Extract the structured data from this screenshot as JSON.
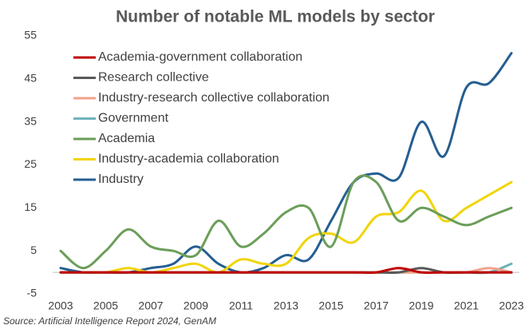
{
  "chart_data": {
    "type": "line",
    "title": "Number of notable ML models by sector",
    "source": "Source: Artificial Intelligence Report 2024, GenAM",
    "x": [
      2003,
      2004,
      2005,
      2006,
      2007,
      2008,
      2009,
      2010,
      2011,
      2012,
      2013,
      2014,
      2015,
      2016,
      2017,
      2018,
      2019,
      2020,
      2021,
      2022,
      2023
    ],
    "xlim": [
      2003,
      2023
    ],
    "xticks": [
      2003,
      2005,
      2007,
      2009,
      2011,
      2013,
      2015,
      2017,
      2019,
      2021,
      2023
    ],
    "ylim": [
      -5,
      55
    ],
    "yticks": [
      -5,
      5,
      15,
      25,
      35,
      45,
      55
    ],
    "grid": false,
    "legend": "upper left",
    "series": [
      {
        "name": "Academia-government collaboration",
        "color": "#c00000",
        "values": [
          0,
          0,
          0,
          0,
          0,
          0,
          0,
          0,
          0,
          0,
          0,
          0,
          0,
          0,
          0,
          1,
          0,
          0,
          0,
          0,
          0
        ]
      },
      {
        "name": "Research collective",
        "color": "#595959",
        "values": [
          0,
          0,
          0,
          0,
          0,
          0,
          0,
          0,
          0,
          0,
          0,
          0,
          0,
          0,
          0,
          0,
          1,
          0,
          0,
          0,
          0
        ]
      },
      {
        "name": "Industry-research collective collaboration",
        "color": "#f1a38a",
        "values": [
          0,
          0,
          0,
          0,
          0,
          0,
          0,
          0,
          0,
          0,
          0,
          0,
          0,
          0,
          0,
          0,
          0,
          0,
          0,
          1,
          0
        ]
      },
      {
        "name": "Government",
        "color": "#6fb3b8",
        "values": [
          0,
          0,
          0,
          0,
          0,
          0,
          0,
          0,
          0,
          0,
          0,
          0,
          0,
          0,
          0,
          0,
          0,
          0,
          0,
          0,
          2
        ]
      },
      {
        "name": "Academia",
        "color": "#6b9e5a",
        "values": [
          5,
          1,
          5,
          10,
          6,
          5,
          4,
          12,
          6,
          9,
          14,
          15,
          6,
          21,
          21,
          12,
          15,
          13,
          11,
          13,
          15
        ]
      },
      {
        "name": "Industry-academia collaboration",
        "color": "#f2d40a",
        "values": [
          0,
          0,
          0,
          1,
          0,
          1,
          2,
          0,
          3,
          2,
          2,
          8,
          9,
          7,
          13,
          14,
          19,
          12,
          15,
          18,
          21
        ]
      },
      {
        "name": "Industry",
        "color": "#255e91",
        "values": [
          1,
          0,
          0,
          0,
          1,
          2,
          6,
          2,
          0,
          1,
          4,
          3,
          12,
          21,
          23,
          22,
          35,
          27,
          43,
          44,
          51
        ]
      }
    ]
  }
}
